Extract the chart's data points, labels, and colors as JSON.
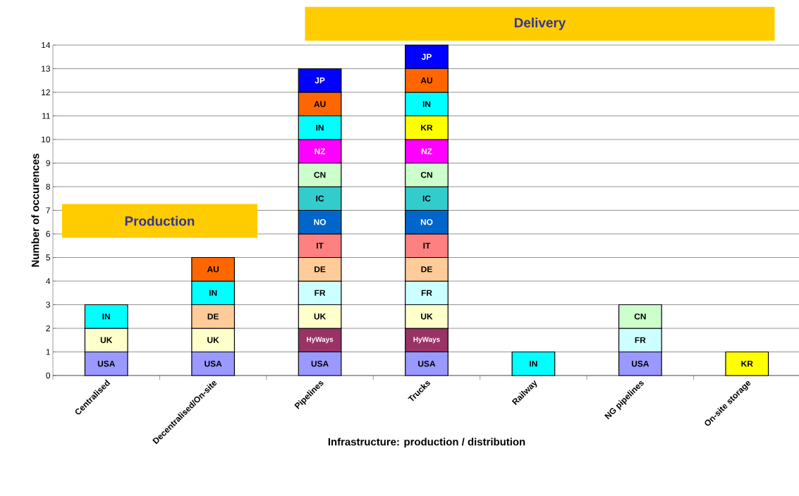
{
  "chart_data": {
    "type": "bar",
    "stacked": true,
    "xlabel": "Infrastructure: production / distribution",
    "ylabel": "Number of occurences",
    "categories": [
      "Centralised",
      "Decentralised/On-site",
      "Pipelines",
      "Trucks",
      "Railway",
      "NG pipelines",
      "On-site storage"
    ],
    "series": [
      {
        "name": "USA",
        "color": "#9999ff",
        "values": [
          1,
          1,
          1,
          1,
          null,
          1,
          null
        ]
      },
      {
        "name": "HyWays",
        "color": "#993366",
        "values": [
          null,
          null,
          1,
          1,
          null,
          null,
          null
        ]
      },
      {
        "name": "UK",
        "color": "#ffffcc",
        "values": [
          1,
          1,
          1,
          1,
          null,
          null,
          null
        ]
      },
      {
        "name": "FR",
        "color": "#ccffff",
        "values": [
          null,
          null,
          1,
          1,
          null,
          1,
          null
        ]
      },
      {
        "name": "DE",
        "color": "#ffcc99",
        "values": [
          null,
          1,
          1,
          1,
          null,
          null,
          null
        ]
      },
      {
        "name": "IT",
        "color": "#ff8080",
        "values": [
          null,
          null,
          1,
          1,
          null,
          null,
          null
        ]
      },
      {
        "name": "NO",
        "color": "#0066cc",
        "values": [
          null,
          null,
          1,
          1,
          null,
          null,
          null
        ]
      },
      {
        "name": "IC",
        "color": "#33cccc",
        "values": [
          null,
          null,
          1,
          1,
          null,
          null,
          null
        ]
      },
      {
        "name": "CN",
        "color": "#ccffcc",
        "values": [
          null,
          null,
          1,
          1,
          null,
          1,
          null
        ]
      },
      {
        "name": "NZ",
        "color": "#ff00ff",
        "values": [
          null,
          null,
          1,
          1,
          null,
          null,
          null
        ]
      },
      {
        "name": "KR",
        "color": "#ffff00",
        "values": [
          null,
          null,
          null,
          1,
          null,
          null,
          1
        ]
      },
      {
        "name": "IN",
        "color": "#00ffff",
        "values": [
          1,
          1,
          1,
          1,
          1,
          null,
          null
        ]
      },
      {
        "name": "AU",
        "color": "#ff6600",
        "values": [
          null,
          1,
          1,
          1,
          null,
          null,
          null
        ]
      },
      {
        "name": "JP",
        "color": "#0000ff",
        "values": [
          null,
          null,
          1,
          1,
          null,
          null,
          null
        ]
      }
    ],
    "ylim": [
      0,
      14
    ],
    "yticks": [
      0,
      1,
      2,
      3,
      4,
      5,
      6,
      7,
      8,
      9,
      10,
      11,
      12,
      13,
      14
    ],
    "grid": "y",
    "annotations": [
      "Production",
      "Delivery"
    ]
  }
}
